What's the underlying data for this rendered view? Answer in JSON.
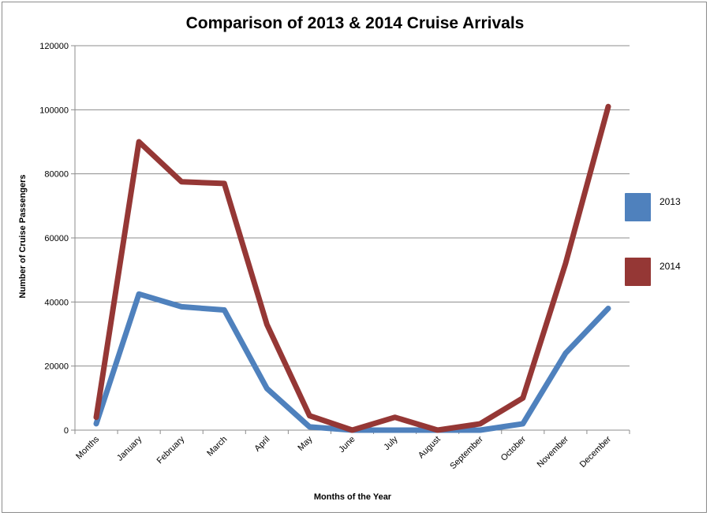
{
  "chart_data": {
    "type": "line",
    "title": "Comparison of 2013 & 2014 Cruise Arrivals",
    "xlabel": "Months of the Year",
    "ylabel": "Number of Cruise Passengers",
    "categories": [
      "Months",
      "January",
      "February",
      "March",
      "April",
      "May",
      "June",
      "July",
      "August",
      "September",
      "October",
      "November",
      "December"
    ],
    "ylim": [
      0,
      120000
    ],
    "yticks": [
      "0",
      "20000",
      "40000",
      "60000",
      "80000",
      "100000",
      "120000"
    ],
    "grid": true,
    "legend_position": "right",
    "series": [
      {
        "name": "2013",
        "color": "#4f81bd",
        "values": [
          2000,
          42500,
          38500,
          37500,
          13000,
          1000,
          0,
          0,
          0,
          0,
          2000,
          24000,
          38000
        ]
      },
      {
        "name": "2014",
        "color": "#953735",
        "values": [
          4000,
          90000,
          77500,
          77000,
          33000,
          4500,
          0,
          4000,
          0,
          2000,
          10000,
          52000,
          101000
        ]
      }
    ]
  }
}
